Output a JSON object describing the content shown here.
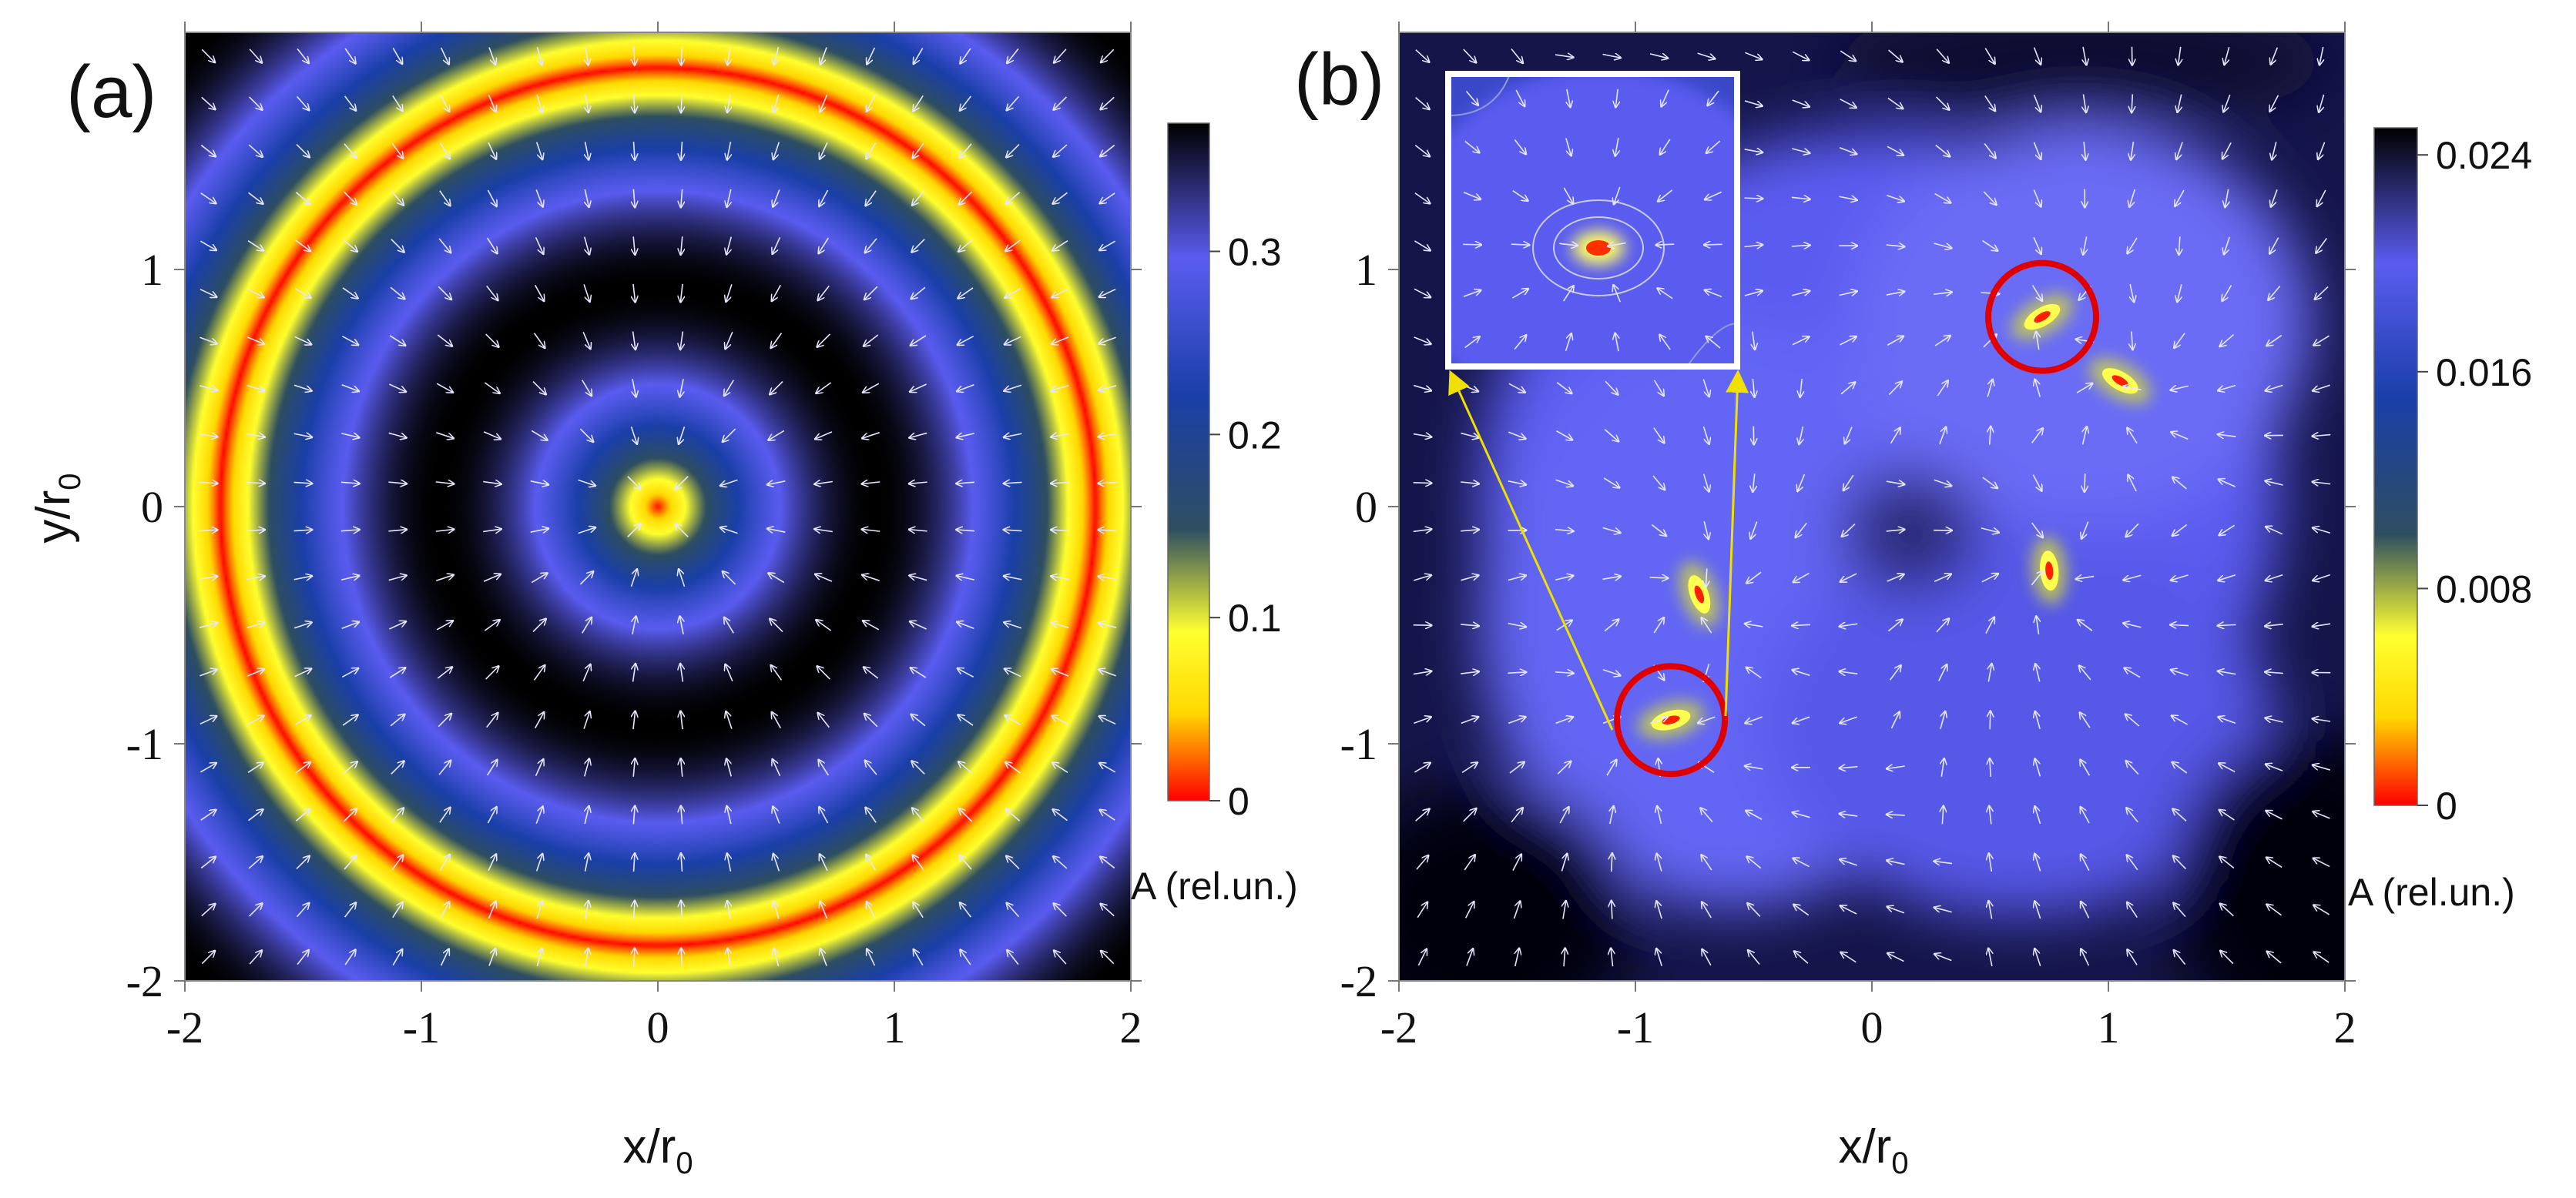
{
  "chart_data": [
    {
      "type": "heatmap",
      "panel_label": "(a)",
      "xlabel": "x/r",
      "xlabel_sub": "0",
      "ylabel": "y/r",
      "ylabel_sub": "0",
      "xlim": [
        -2,
        2
      ],
      "ylim": [
        -2,
        2
      ],
      "x_ticks": [
        "-2",
        "-1",
        "0",
        "1",
        "2"
      ],
      "y_ticks": [
        "-2",
        "-1",
        "0",
        "1"
      ],
      "x_tick_values": [
        -2,
        -1,
        0,
        1,
        2
      ],
      "y_tick_values": [
        -2,
        -1,
        0,
        1
      ],
      "colorbar": {
        "title": "A (rel.un.)",
        "range": [
          0,
          0.37
        ],
        "ticks": [
          "0",
          "0.1",
          "0.2",
          "0.3"
        ],
        "tick_values": [
          0,
          0.1,
          0.2,
          0.3
        ],
        "colors": [
          "#ff0000",
          "#ffd800",
          "#ffff30",
          "#2e4e60",
          "#1a3fa8",
          "#5a5cf0",
          "#000000"
        ]
      },
      "field": "concentric rings: amplitude minimum (red) at center, dark maxima rings near r=0.9 and r=2.0",
      "vectors": "radial arrows pointing toward the center"
    },
    {
      "type": "heatmap",
      "panel_label": "(b)",
      "xlabel": "x/r",
      "xlabel_sub": "0",
      "xlim": [
        -2,
        2
      ],
      "ylim": [
        -2,
        2
      ],
      "x_ticks": [
        "-2",
        "-1",
        "0",
        "1",
        "2"
      ],
      "y_ticks": [
        "-2",
        "-1",
        "0",
        "1"
      ],
      "x_tick_values": [
        -2,
        -1,
        0,
        1,
        2
      ],
      "y_tick_values": [
        -2,
        -1,
        0,
        1
      ],
      "colorbar": {
        "title": "A (rel.un.)",
        "range": [
          0,
          0.025
        ],
        "ticks": [
          "0",
          "0.008",
          "0.016",
          "0.024"
        ],
        "tick_values": [
          0,
          0.008,
          0.016,
          0.024
        ],
        "colors": [
          "#ff0000",
          "#ffd800",
          "#ffff30",
          "#2e4e60",
          "#1a3fa8",
          "#5a5cf0",
          "#000000"
        ]
      },
      "minima": [
        {
          "x": -0.85,
          "y": -0.9,
          "circled": true
        },
        {
          "x": 0.72,
          "y": 0.8,
          "circled": true
        },
        {
          "x": 1.05,
          "y": 0.53,
          "circled": false
        },
        {
          "x": -0.73,
          "y": -0.37,
          "circled": false
        },
        {
          "x": 0.75,
          "y": -0.27,
          "circled": false
        }
      ],
      "inset": {
        "zoom_of": {
          "x": -0.85,
          "y": -0.9
        },
        "color": "#ffffff"
      },
      "circle_color": "#e00000",
      "arrow_color": "#f0e000"
    }
  ]
}
